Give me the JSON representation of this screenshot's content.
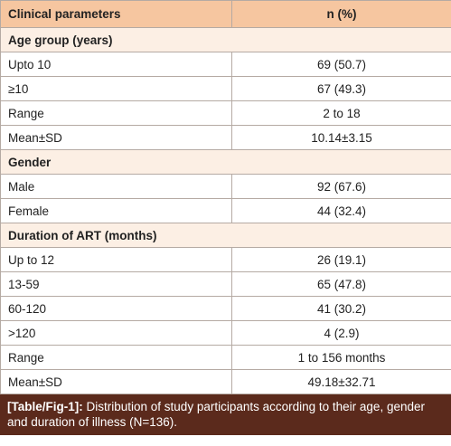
{
  "table": {
    "header": [
      "Clinical parameters",
      "n (%)"
    ],
    "rows": [
      [
        "Age group (years)"
      ],
      [
        "Upto 10",
        "69 (50.7)"
      ],
      [
        "≥10",
        "67 (49.3)"
      ],
      [
        "Range",
        "2 to 18"
      ],
      [
        "Mean±SD",
        "10.14±3.15"
      ],
      [
        "Gender"
      ],
      [
        "Male",
        "92 (67.6)"
      ],
      [
        "Female",
        "44 (32.4)"
      ],
      [
        "Duration of ART (months)"
      ],
      [
        "Up to 12",
        "26 (19.1)"
      ],
      [
        "13-59",
        "65 (47.8)"
      ],
      [
        "60-120",
        "41 (30.2)"
      ],
      [
        ">120",
        "4 (2.9)"
      ],
      [
        "Range",
        "1 to 156 months"
      ],
      [
        "Mean±SD",
        "49.18±32.71"
      ]
    ]
  },
  "caption": {
    "label": "[Table/Fig-1]:",
    "text": "Distribution of study participants according to their age, gender and duration of illness (N=136)."
  }
}
